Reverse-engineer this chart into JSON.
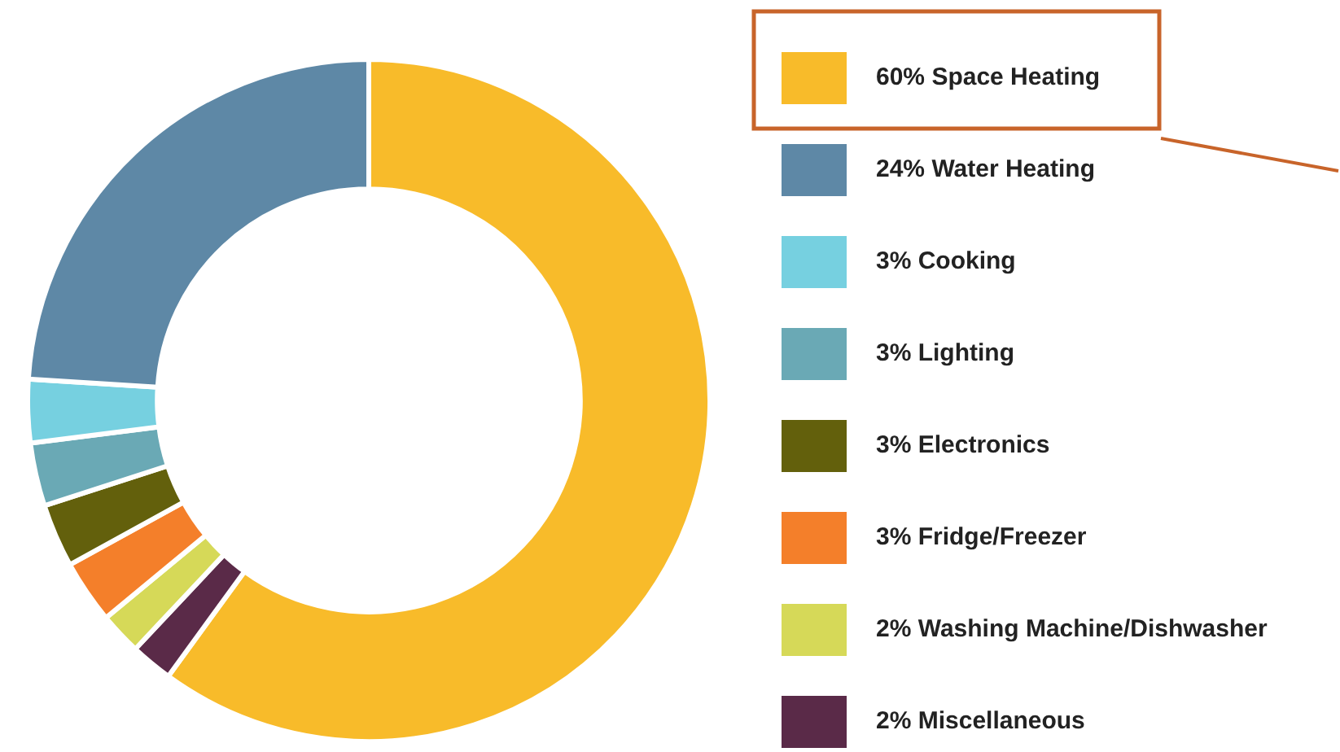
{
  "chart_data": {
    "type": "donut",
    "categories": [
      "Space Heating",
      "Miscellaneous",
      "Washing Machine/Dishwasher",
      "Fridge/Freezer",
      "Electronics",
      "Lighting",
      "Cooking",
      "Water Heating"
    ],
    "values": [
      60,
      2,
      2,
      3,
      3,
      3,
      3,
      24
    ],
    "value_labels": [
      "60%",
      "2%",
      "2%",
      "3%",
      "3%",
      "3%",
      "3%",
      "24%"
    ],
    "colors": [
      "#f8bb2a",
      "#5a2a48",
      "#d6d958",
      "#f47f2a",
      "#63600c",
      "#6aa9b5",
      "#76d0e0",
      "#5e88a6"
    ],
    "legend": "right"
  }
}
